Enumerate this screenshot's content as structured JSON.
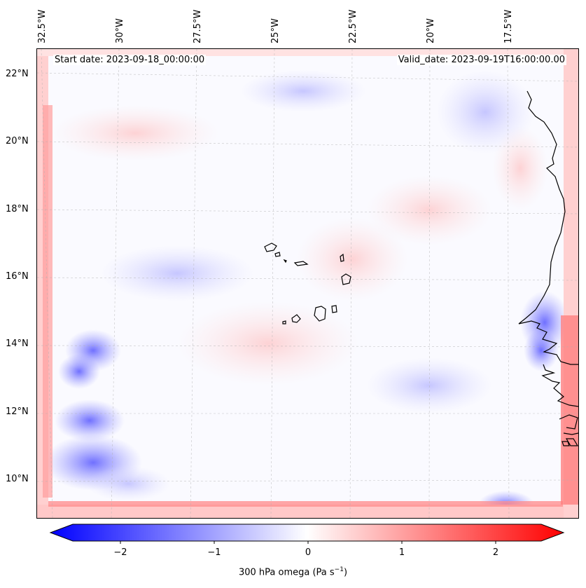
{
  "header": {
    "start_date": "Start date: 2023-09-18_00:00:00",
    "valid_date": "Valid_date: 2023-09-19T16:00:00.00"
  },
  "longitude_labels": [
    "32.5°W",
    "30°W",
    "27.5°W",
    "25°W",
    "22.5°W",
    "20°W",
    "17.5°W"
  ],
  "latitude_labels": [
    "22°N",
    "20°N",
    "18°N",
    "16°N",
    "14°N",
    "12°N",
    "10°N"
  ],
  "colorbar": {
    "ticks": [
      "−2",
      "−1",
      "0",
      "1",
      "2"
    ],
    "label_main": "300 hPa omega (Pa s",
    "label_exp": "−1",
    "label_end": ")",
    "range": [
      -2.75,
      2.75
    ],
    "colors": {
      "negative": "#0000ff",
      "zero": "#ffffff",
      "positive": "#ff0000"
    }
  },
  "map": {
    "grid": true,
    "features": [
      "cape-verde-islands",
      "west-africa-coastline"
    ]
  }
}
